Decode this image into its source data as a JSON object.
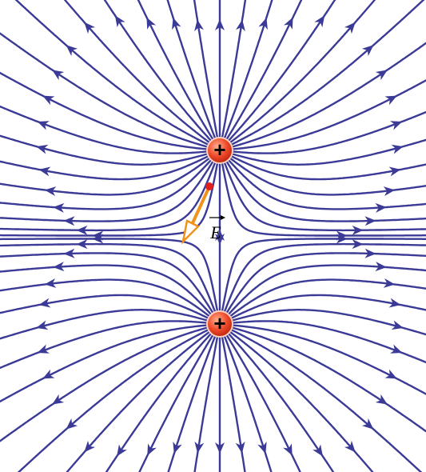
{
  "charges": [
    {
      "label": "+"
    },
    {
      "label": "+"
    }
  ],
  "vector": {
    "label": "E"
  }
}
